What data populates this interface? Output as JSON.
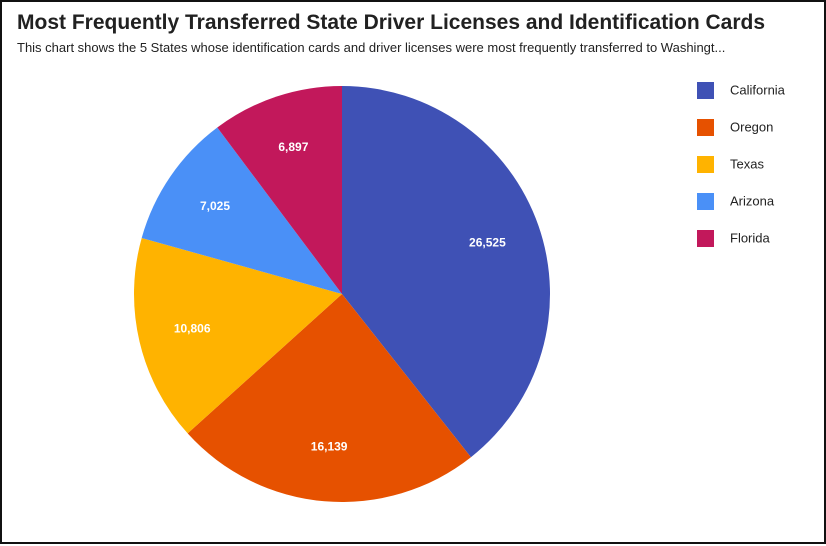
{
  "chart_data": {
    "type": "pie",
    "title": "Most Frequently Transferred State Driver Licenses and Identification Cards",
    "subtitle": "This chart shows the 5 States whose identification cards and driver licenses were most frequently transferred to Washingt...",
    "categories": [
      "California",
      "Oregon",
      "Texas",
      "Arizona",
      "Florida"
    ],
    "values": [
      26525,
      16139,
      10806,
      7025,
      6897
    ],
    "value_labels": [
      "26,525",
      "16,139",
      "10,806",
      "7,025",
      "6,897"
    ],
    "colors": [
      "#3F51B5",
      "#E65100",
      "#FFB300",
      "#4A90F7",
      "#C2185B"
    ],
    "legend_position": "right",
    "start_angle": "top, clockwise"
  }
}
